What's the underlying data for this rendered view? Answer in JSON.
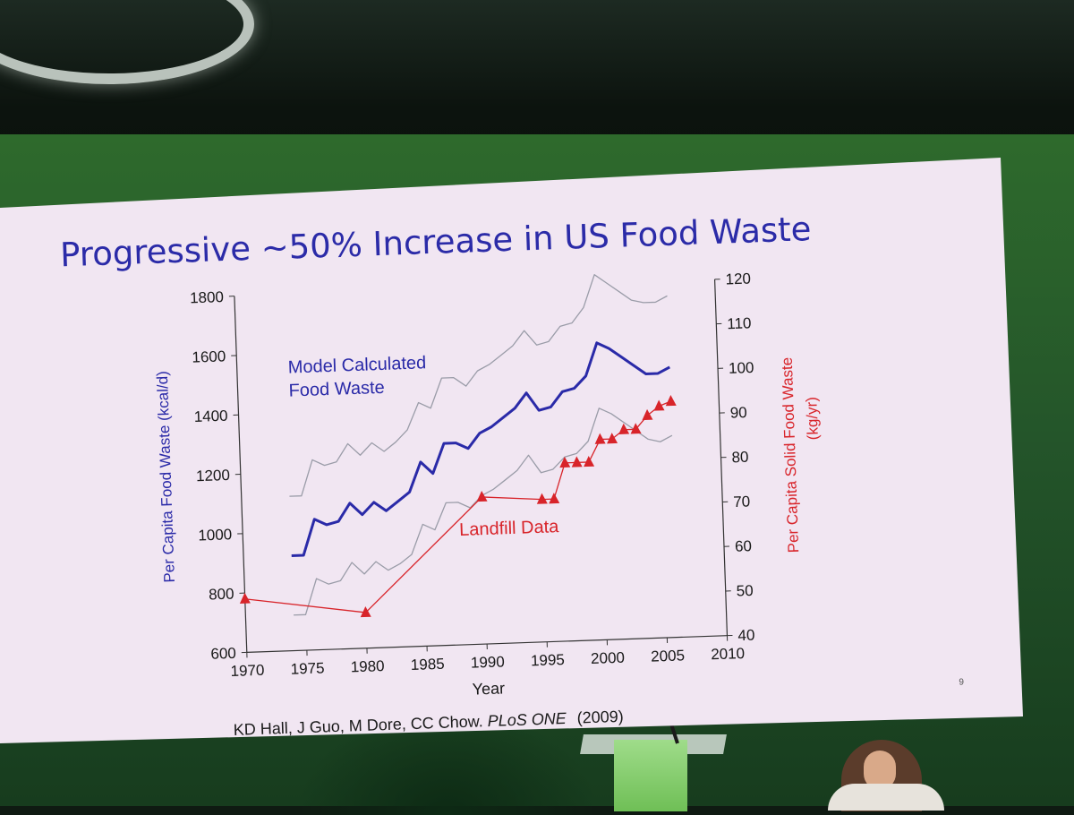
{
  "slide": {
    "title": "Progressive ~50% Increase in US Food Waste",
    "citation_authors": "KD Hall, J Guo, M Dore, CC Chow. ",
    "citation_journal": "PLoS ONE",
    "citation_year": "(2009)",
    "page_number": "9"
  },
  "chart_data": {
    "type": "line",
    "xlabel": "Year",
    "ylabel_left": "Per Capita Food Waste (kcal/d)",
    "ylabel_right_line1": "Per Capita Solid Food Waste",
    "ylabel_right_line2": "(kg/yr)",
    "xlim": [
      1970,
      2010
    ],
    "ylim_left": [
      600,
      1800
    ],
    "ylim_right": [
      40,
      120
    ],
    "x_ticks": [
      "1970",
      "1975",
      "1980",
      "1985",
      "1990",
      "1995",
      "2000",
      "2005",
      "2010"
    ],
    "y_ticks_left": [
      "600",
      "800",
      "1000",
      "1200",
      "1400",
      "1600",
      "1800"
    ],
    "y_ticks_right": [
      "40",
      "50",
      "60",
      "70",
      "80",
      "90",
      "100",
      "110",
      "120"
    ],
    "grid": false,
    "colors": {
      "model": "#2a2aa8",
      "landfill": "#d8242a",
      "bounds": "#9a9ca8"
    },
    "annotations": [
      {
        "line1": "Model Calculated",
        "line2": "Food Waste",
        "series": "model"
      },
      {
        "line1": "Landfill Data",
        "line2": "",
        "series": "landfill"
      }
    ],
    "series": [
      {
        "name": "Model Calculated Food Waste",
        "axis": "left",
        "x": [
          1974,
          1975,
          1976,
          1977,
          1978,
          1979,
          1980,
          1981,
          1982,
          1983,
          1984,
          1985,
          1986,
          1987,
          1988,
          1989,
          1990,
          1991,
          1992,
          1993,
          1994,
          1995,
          1996,
          1997,
          1998,
          1999,
          2000,
          2001,
          2002,
          2003,
          2004,
          2005,
          2006
        ],
        "y": [
          920,
          920,
          1040,
          1020,
          1030,
          1090,
          1050,
          1090,
          1060,
          1090,
          1120,
          1220,
          1180,
          1280,
          1280,
          1260,
          1310,
          1330,
          1360,
          1390,
          1440,
          1380,
          1390,
          1440,
          1450,
          1490,
          1600,
          1580,
          1550,
          1520,
          1490,
          1490,
          1510
        ]
      },
      {
        "name": "Upper bound",
        "axis": "left",
        "x": [
          1974,
          1975,
          1976,
          1977,
          1978,
          1979,
          1980,
          1981,
          1982,
          1983,
          1984,
          1985,
          1986,
          1987,
          1988,
          1989,
          1990,
          1991,
          1992,
          1993,
          1994,
          1995,
          1996,
          1997,
          1998,
          1999,
          2000,
          2001,
          2002,
          2003,
          2004,
          2005,
          2006
        ],
        "y": [
          1120,
          1120,
          1240,
          1220,
          1230,
          1290,
          1250,
          1290,
          1260,
          1290,
          1330,
          1420,
          1400,
          1500,
          1500,
          1470,
          1520,
          1540,
          1570,
          1600,
          1650,
          1600,
          1610,
          1660,
          1670,
          1720,
          1830,
          1800,
          1770,
          1740,
          1730,
          1730,
          1750
        ]
      },
      {
        "name": "Lower bound",
        "axis": "left",
        "x": [
          1974,
          1975,
          1976,
          1977,
          1978,
          1979,
          1980,
          1981,
          1982,
          1983,
          1984,
          1985,
          1986,
          1987,
          1988,
          1989,
          1990,
          1991,
          1992,
          1993,
          1994,
          1995,
          1996,
          1997,
          1998,
          1999,
          2000,
          2001,
          2002,
          2003,
          2004,
          2005,
          2006
        ],
        "y": [
          720,
          720,
          840,
          820,
          830,
          890,
          850,
          890,
          860,
          880,
          910,
          1010,
          990,
          1080,
          1080,
          1060,
          1100,
          1120,
          1150,
          1180,
          1230,
          1170,
          1180,
          1220,
          1230,
          1270,
          1380,
          1360,
          1330,
          1300,
          1270,
          1260,
          1280
        ]
      },
      {
        "name": "Landfill Data",
        "axis": "right",
        "x": [
          1970,
          1980,
          1990,
          1995,
          1996,
          1997,
          1998,
          1999,
          2000,
          2001,
          2002,
          2003,
          2004,
          2005,
          2006
        ],
        "y": [
          52,
          48,
          73,
          72,
          72,
          80,
          80,
          80,
          85,
          85,
          87,
          87,
          90,
          92,
          93
        ]
      }
    ]
  }
}
